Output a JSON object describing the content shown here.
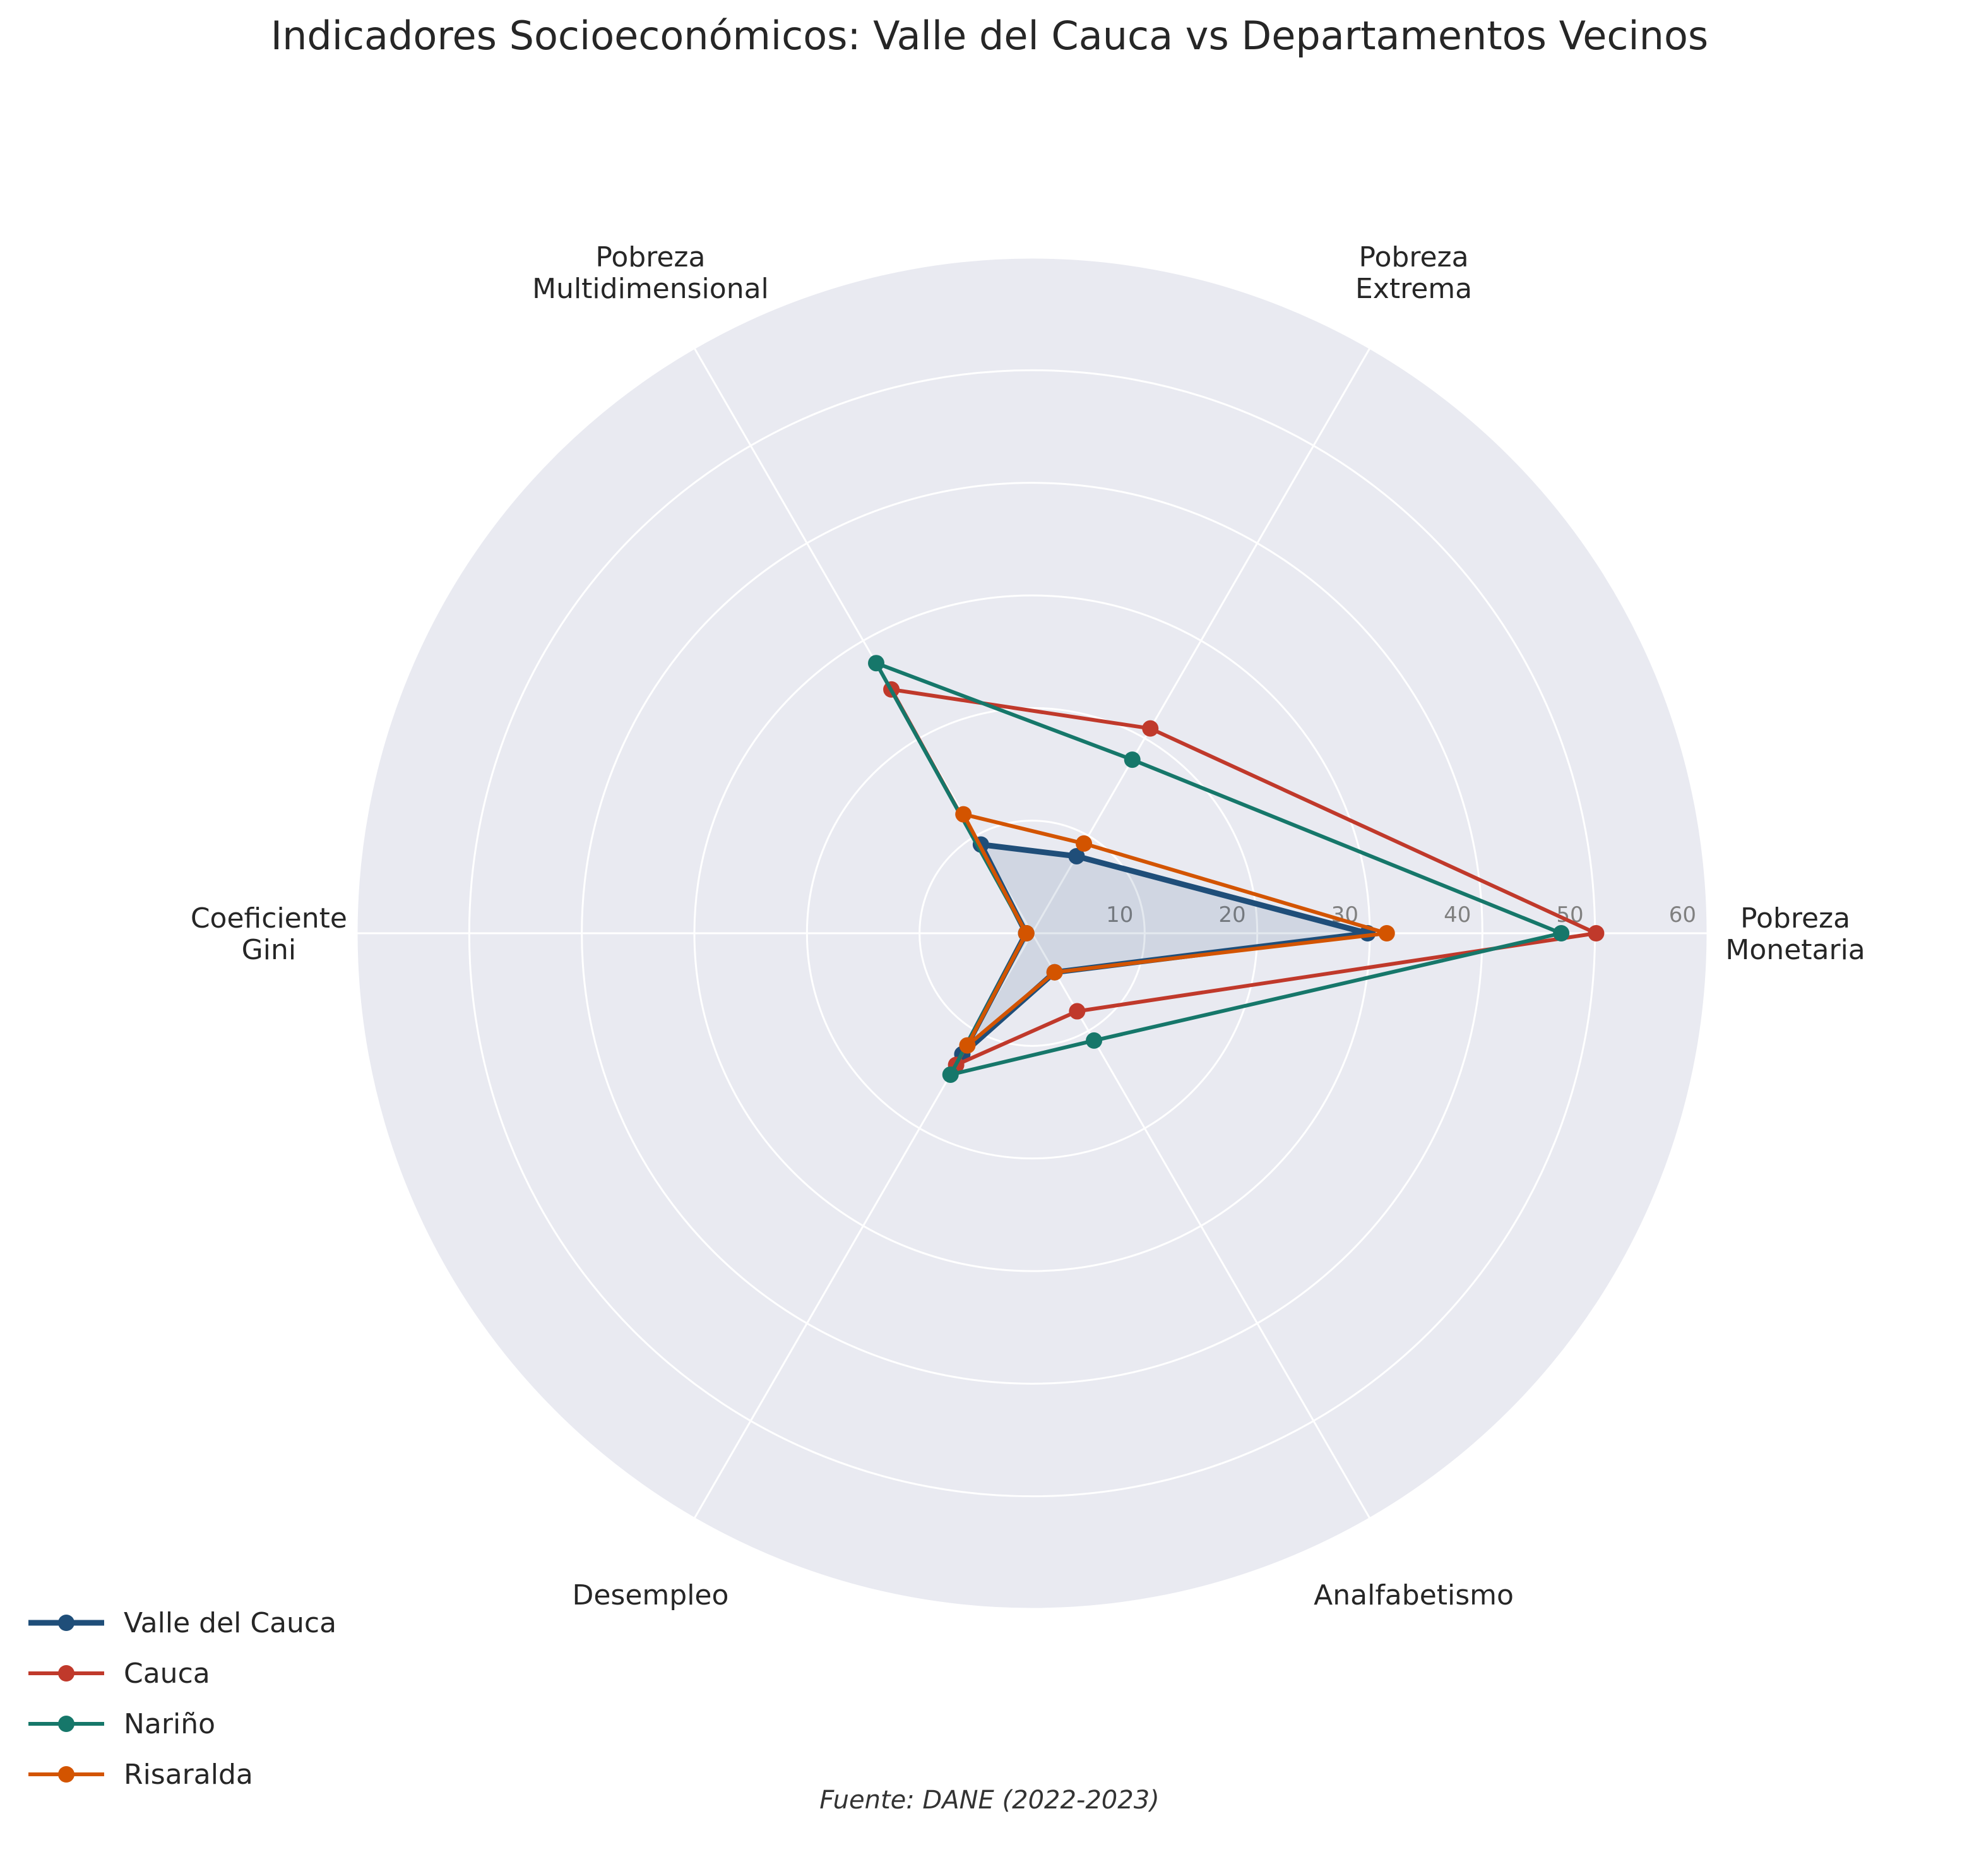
{
  "title": "Indicadores Socioeconómicos: Valle del Cauca vs Departamentos Vecinos",
  "source_note": "Fuente: DANE (2022-2023)",
  "colors": {
    "background_polar": "#e9eaf1",
    "grid": "#ffffff",
    "tick_label": "#808080"
  },
  "chart_data": {
    "type": "radar",
    "title": "Indicadores Socioeconómicos: Valle del Cauca vs Departamentos Vecinos",
    "axes": [
      [
        "Pobreza",
        "Monetaria"
      ],
      [
        "Pobreza",
        "Extrema"
      ],
      [
        "Pobreza",
        "Multidimensional"
      ],
      [
        "Coeficiente",
        "Gini"
      ],
      [
        "Desempleo"
      ],
      [
        "Analfabetismo"
      ]
    ],
    "rlim": [
      0,
      60
    ],
    "r_ticks": [
      10,
      20,
      30,
      40,
      50,
      60
    ],
    "grid": true,
    "legend_position": "bottom-left",
    "series": [
      {
        "name": "Valle del Cauca",
        "color": "#1f4e79",
        "filled": true,
        "bold": true,
        "values": [
          29.8,
          7.9,
          9.1,
          0.53,
          12.4,
          4.0
        ]
      },
      {
        "name": "Cauca",
        "color": "#c0392b",
        "filled": false,
        "bold": false,
        "values": [
          50.1,
          21.0,
          25.0,
          0.52,
          13.5,
          8.0
        ]
      },
      {
        "name": "Nariño",
        "color": "#16776a",
        "filled": false,
        "bold": false,
        "values": [
          47.0,
          17.8,
          27.7,
          0.52,
          14.5,
          11.0
        ]
      },
      {
        "name": "Risaralda",
        "color": "#d35400",
        "filled": false,
        "bold": false,
        "values": [
          31.5,
          9.2,
          12.2,
          0.52,
          11.5,
          4.0
        ]
      }
    ]
  }
}
